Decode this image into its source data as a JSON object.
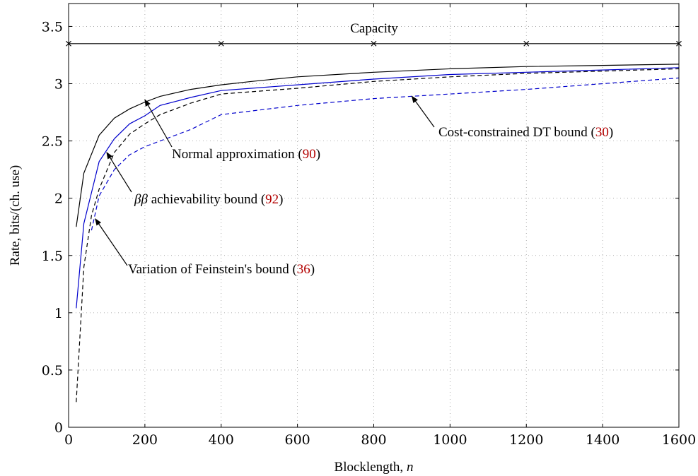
{
  "chart_data": {
    "type": "line",
    "xlabel": "Blocklength, ",
    "xlabel_var": "n",
    "ylabel": "Rate, bits/(ch. use)",
    "xlim": [
      0,
      1600
    ],
    "ylim": [
      0,
      3.7
    ],
    "xticks": [
      0,
      200,
      400,
      600,
      800,
      1000,
      1200,
      1400,
      1600
    ],
    "yticks": [
      0,
      0.5,
      1,
      1.5,
      2,
      2.5,
      3,
      3.5
    ],
    "ytick_labels": [
      "0",
      "0.5",
      "1",
      "1.5",
      "2",
      "2.5",
      "3",
      "3.5"
    ],
    "grid": true,
    "series": [
      {
        "name": "Capacity",
        "color": "#000000",
        "dash": "solid",
        "marker": "cross",
        "x": [
          0,
          400,
          800,
          1200,
          1600
        ],
        "y": [
          3.35,
          3.35,
          3.35,
          3.35,
          3.35
        ]
      },
      {
        "name": "Normal approximation",
        "color": "#000000",
        "dash": "solid",
        "x": [
          20,
          40,
          80,
          120,
          160,
          200,
          240,
          320,
          400,
          480,
          600,
          800,
          1000,
          1200,
          1400,
          1600
        ],
        "y": [
          1.75,
          2.22,
          2.55,
          2.7,
          2.78,
          2.84,
          2.89,
          2.95,
          2.99,
          3.02,
          3.06,
          3.1,
          3.13,
          3.15,
          3.16,
          3.17
        ]
      },
      {
        "name": "ββ achievability bound",
        "color": "#0000cc",
        "dash": "solid",
        "x": [
          20,
          40,
          80,
          120,
          160,
          200,
          240,
          320,
          400,
          600,
          800,
          1000,
          1200,
          1400,
          1600
        ],
        "y": [
          1.04,
          1.78,
          2.32,
          2.52,
          2.65,
          2.72,
          2.81,
          2.88,
          2.94,
          2.99,
          3.04,
          3.08,
          3.1,
          3.12,
          3.14
        ]
      },
      {
        "name": "Variation of Feinstein's bound",
        "color": "#000000",
        "dash": "dashed",
        "x": [
          20,
          40,
          60,
          80,
          120,
          160,
          200,
          240,
          320,
          400,
          600,
          800,
          1000,
          1200,
          1400,
          1600
        ],
        "y": [
          0.22,
          1.4,
          1.85,
          2.08,
          2.4,
          2.56,
          2.65,
          2.73,
          2.83,
          2.91,
          2.96,
          3.02,
          3.06,
          3.09,
          3.11,
          3.13
        ]
      },
      {
        "name": "Cost-constrained DT bound",
        "color": "#0000cc",
        "dash": "dashed",
        "x": [
          60,
          80,
          120,
          160,
          200,
          240,
          320,
          400,
          600,
          800,
          1000,
          1200,
          1400,
          1600
        ],
        "y": [
          1.72,
          2.02,
          2.25,
          2.38,
          2.45,
          2.5,
          2.6,
          2.73,
          2.81,
          2.87,
          2.91,
          2.95,
          3.0,
          3.05
        ]
      }
    ],
    "annotations": {
      "capacity": {
        "text": "Capacity"
      },
      "normal": {
        "text": "Normal approximation (",
        "ref": "90",
        "close": ")",
        "arrow_to": [
          200,
          2.86
        ]
      },
      "bb": {
        "text_var": "ββ",
        "text": " achievability bound (",
        "ref": "92",
        "close": ")",
        "arrow_to": [
          100,
          2.4
        ]
      },
      "feinstein": {
        "text": "Variation of Feinstein's bound (",
        "ref": "36",
        "close": ")",
        "arrow_to": [
          70,
          1.82
        ]
      },
      "dt": {
        "text": "Cost-constrained DT bound (",
        "ref": "30",
        "close": ")",
        "arrow_to": [
          900,
          2.89
        ]
      }
    }
  }
}
